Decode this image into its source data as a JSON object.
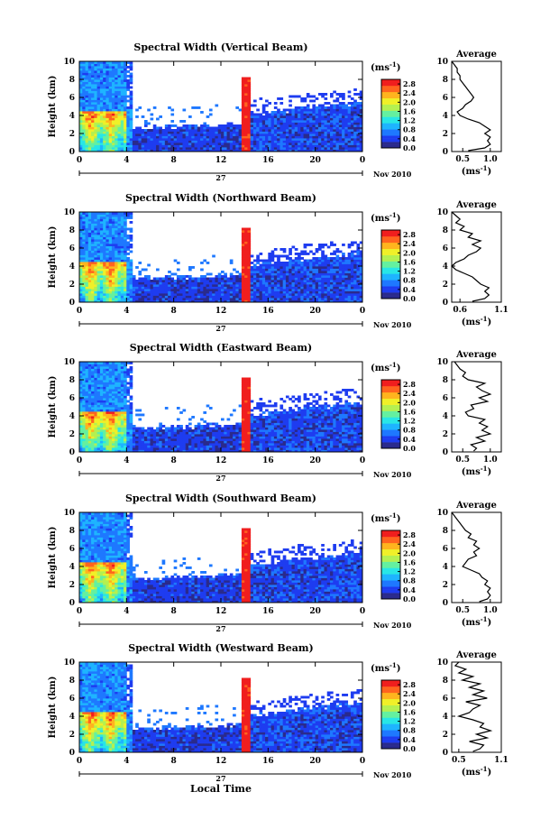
{
  "chart_data": {
    "type": "heatmap",
    "common": {
      "x_ticks": [
        "0",
        "4",
        "8",
        "12",
        "16",
        "20",
        "0"
      ],
      "x_range": [
        0,
        24
      ],
      "y_ticks": [
        "0",
        "2",
        "4",
        "6",
        "8",
        "10"
      ],
      "y_range": [
        0,
        10
      ],
      "ylabel": "Height (km)",
      "date_day": "27",
      "date_month": "Nov 2010",
      "xlabel": "Local Time",
      "colorbar_unit": "(ms",
      "colorbar_unit_exp": "-1",
      "colorbar_unit_close": ")",
      "colorbar_ticks": [
        "0.0",
        "0.4",
        "0.8",
        "1.2",
        "1.6",
        "2.0",
        "2.4",
        "2.8"
      ],
      "colorbar_range": [
        0,
        3.0
      ],
      "colormap": [
        "#2a2a8c",
        "#1e3cf0",
        "#1e78ff",
        "#1eb4ff",
        "#28e6e6",
        "#64f0a0",
        "#b4f050",
        "#f0f028",
        "#ffb41e",
        "#ff641e",
        "#f01e1e"
      ],
      "avg_title": "Average",
      "avg_xlabel": "(ms",
      "avg_xlabel_exp": "-1",
      "avg_xlabel_close": ")"
    },
    "panels": [
      {
        "title": "Spectral Width (Vertical Beam)",
        "avg_ticks": [
          "0.5",
          "1.0"
        ],
        "avg_xlim": [
          0.3,
          1.2
        ],
        "avg_profile": [
          [
            0.6,
            0.1
          ],
          [
            0.9,
            0.4
          ],
          [
            1.0,
            0.8
          ],
          [
            0.95,
            1.2
          ],
          [
            1.0,
            1.6
          ],
          [
            0.9,
            2.0
          ],
          [
            1.0,
            2.4
          ],
          [
            0.9,
            2.8
          ],
          [
            0.8,
            3.2
          ],
          [
            0.6,
            3.6
          ],
          [
            0.45,
            4.0
          ],
          [
            0.4,
            4.4
          ],
          [
            0.5,
            4.8
          ],
          [
            0.55,
            5.2
          ],
          [
            0.65,
            5.6
          ],
          [
            0.7,
            6.0
          ],
          [
            0.65,
            6.4
          ],
          [
            0.6,
            6.8
          ],
          [
            0.55,
            7.2
          ],
          [
            0.5,
            7.6
          ],
          [
            0.45,
            8.0
          ],
          [
            0.45,
            8.4
          ],
          [
            0.4,
            8.8
          ],
          [
            0.4,
            9.2
          ],
          [
            0.35,
            9.6
          ],
          [
            0.3,
            10.0
          ]
        ]
      },
      {
        "title": "Spectral Width (Northward Beam)",
        "avg_ticks": [
          "0.6",
          "1.1"
        ],
        "avg_xlim": [
          0.5,
          1.1
        ],
        "avg_profile": [
          [
            0.75,
            0.1
          ],
          [
            0.9,
            0.4
          ],
          [
            0.95,
            0.8
          ],
          [
            0.9,
            1.2
          ],
          [
            0.95,
            1.6
          ],
          [
            0.85,
            2.0
          ],
          [
            0.8,
            2.4
          ],
          [
            0.75,
            2.8
          ],
          [
            0.65,
            3.2
          ],
          [
            0.55,
            3.6
          ],
          [
            0.5,
            4.0
          ],
          [
            0.55,
            4.4
          ],
          [
            0.65,
            4.8
          ],
          [
            0.7,
            5.2
          ],
          [
            0.8,
            5.6
          ],
          [
            0.85,
            6.0
          ],
          [
            0.75,
            6.4
          ],
          [
            0.85,
            6.8
          ],
          [
            0.7,
            7.2
          ],
          [
            0.75,
            7.6
          ],
          [
            0.6,
            8.0
          ],
          [
            0.65,
            8.4
          ],
          [
            0.55,
            8.8
          ],
          [
            0.6,
            9.2
          ],
          [
            0.55,
            9.6
          ],
          [
            0.5,
            10.0
          ]
        ]
      },
      {
        "title": "Spectral Width (Eastward Beam)",
        "avg_ticks": [
          "0.5",
          "1.0"
        ],
        "avg_xlim": [
          0.3,
          1.2
        ],
        "avg_profile": [
          [
            0.7,
            0.1
          ],
          [
            0.75,
            0.4
          ],
          [
            0.65,
            0.8
          ],
          [
            0.9,
            1.2
          ],
          [
            0.75,
            1.6
          ],
          [
            1.0,
            2.0
          ],
          [
            0.85,
            2.4
          ],
          [
            0.95,
            2.8
          ],
          [
            0.8,
            3.2
          ],
          [
            0.9,
            3.6
          ],
          [
            0.6,
            4.0
          ],
          [
            0.55,
            4.4
          ],
          [
            0.7,
            4.8
          ],
          [
            0.65,
            5.2
          ],
          [
            0.95,
            5.6
          ],
          [
            0.8,
            6.0
          ],
          [
            1.0,
            6.4
          ],
          [
            0.85,
            6.8
          ],
          [
            0.75,
            7.2
          ],
          [
            0.9,
            7.6
          ],
          [
            0.6,
            8.0
          ],
          [
            0.5,
            8.4
          ],
          [
            0.55,
            8.8
          ],
          [
            0.45,
            9.2
          ],
          [
            0.4,
            9.6
          ],
          [
            0.35,
            10.0
          ]
        ]
      },
      {
        "title": "Spectral Width (Southward Beam)",
        "avg_ticks": [
          "0.5",
          "1.0"
        ],
        "avg_xlim": [
          0.3,
          1.2
        ],
        "avg_profile": [
          [
            0.8,
            0.1
          ],
          [
            0.95,
            0.4
          ],
          [
            1.0,
            0.8
          ],
          [
            0.95,
            1.2
          ],
          [
            1.0,
            1.6
          ],
          [
            0.9,
            2.0
          ],
          [
            0.95,
            2.4
          ],
          [
            0.85,
            2.8
          ],
          [
            0.8,
            3.2
          ],
          [
            0.65,
            3.6
          ],
          [
            0.5,
            4.0
          ],
          [
            0.55,
            4.4
          ],
          [
            0.6,
            4.8
          ],
          [
            0.75,
            5.2
          ],
          [
            0.7,
            5.6
          ],
          [
            0.8,
            6.0
          ],
          [
            0.7,
            6.4
          ],
          [
            0.75,
            6.8
          ],
          [
            0.6,
            7.2
          ],
          [
            0.65,
            7.6
          ],
          [
            0.55,
            8.0
          ],
          [
            0.5,
            8.4
          ],
          [
            0.45,
            8.8
          ],
          [
            0.4,
            9.2
          ],
          [
            0.35,
            9.6
          ],
          [
            0.3,
            10.0
          ]
        ]
      },
      {
        "title": "Spectral Width (Westward Beam)",
        "avg_ticks": [
          "0.5",
          "1.1"
        ],
        "avg_xlim": [
          0.4,
          1.1
        ],
        "avg_profile": [
          [
            0.7,
            0.1
          ],
          [
            0.8,
            0.4
          ],
          [
            0.85,
            0.8
          ],
          [
            0.65,
            1.2
          ],
          [
            0.9,
            1.6
          ],
          [
            0.75,
            2.0
          ],
          [
            0.95,
            2.4
          ],
          [
            0.8,
            2.8
          ],
          [
            0.85,
            3.2
          ],
          [
            0.7,
            3.6
          ],
          [
            0.5,
            4.0
          ],
          [
            0.65,
            4.4
          ],
          [
            0.7,
            4.8
          ],
          [
            0.8,
            5.2
          ],
          [
            0.6,
            5.6
          ],
          [
            0.9,
            6.0
          ],
          [
            0.7,
            6.4
          ],
          [
            0.85,
            6.8
          ],
          [
            0.65,
            7.2
          ],
          [
            0.8,
            7.6
          ],
          [
            0.55,
            8.0
          ],
          [
            0.7,
            8.4
          ],
          [
            0.5,
            8.8
          ],
          [
            0.6,
            9.2
          ],
          [
            0.45,
            9.6
          ],
          [
            0.5,
            10.0
          ]
        ]
      }
    ]
  }
}
